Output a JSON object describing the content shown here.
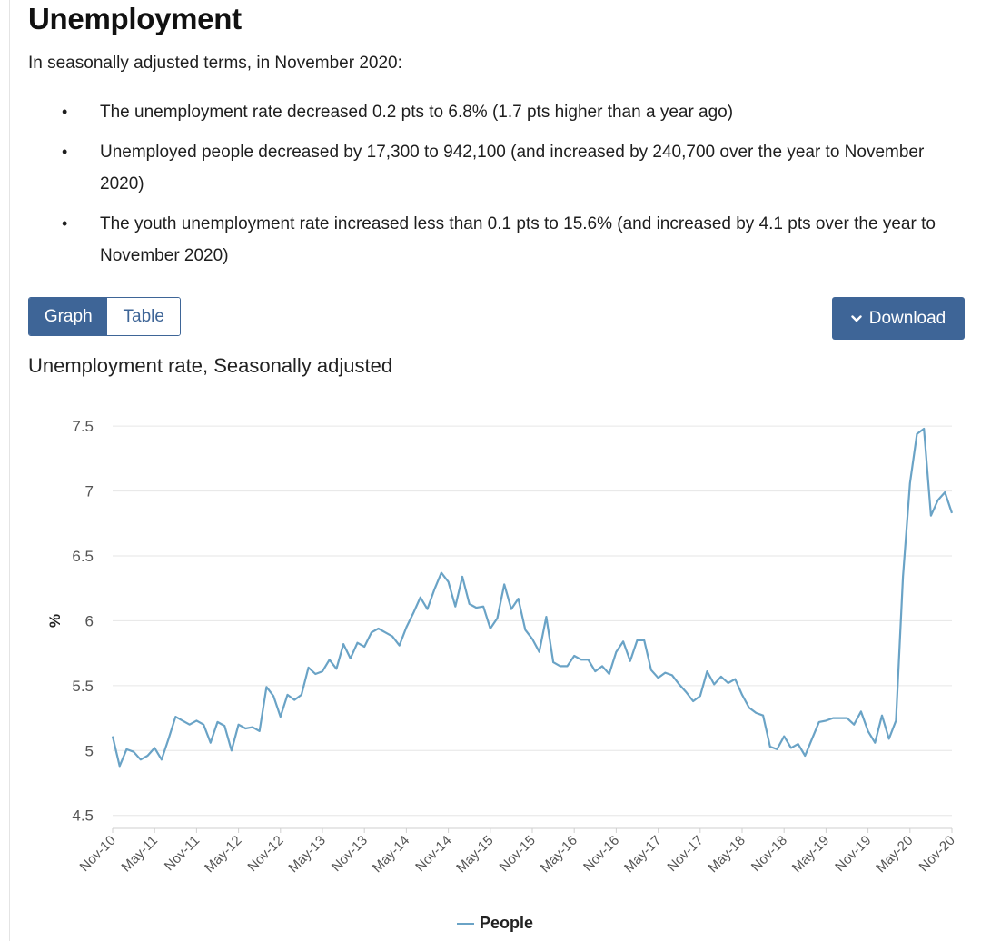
{
  "heading": "Unemployment",
  "intro": "In seasonally adjusted terms, in November 2020:",
  "bullets": [
    "The unemployment rate decreased 0.2 pts to 6.8% (1.7 pts higher than a year ago)",
    "Unemployed people decreased by 17,300 to 942,100 (and increased by 240,700 over the year to November 2020)",
    "The youth unemployment rate increased less than 0.1 pts to 15.6% (and increased by 4.1 pts over the year to November 2020)"
  ],
  "view_toggle": {
    "graph_label": "Graph",
    "table_label": "Table",
    "selected": "Graph"
  },
  "download": {
    "label": "Download",
    "icon": "chevron-down-icon"
  },
  "chart_title": "Unemployment rate, Seasonally adjusted",
  "colors": {
    "accent": "#3e6597",
    "series": "#6aa3c6",
    "grid": "#e6e6e6"
  },
  "chart_data": {
    "type": "line",
    "title": "Unemployment rate, Seasonally adjusted",
    "xlabel": "",
    "ylabel": "%",
    "ylim": [
      4.4,
      7.55
    ],
    "yticks": [
      4.5,
      5,
      5.5,
      6,
      6.5,
      7,
      7.5
    ],
    "x_tick_labels": [
      "Nov-10",
      "May-11",
      "Nov-11",
      "May-12",
      "Nov-12",
      "May-13",
      "Nov-13",
      "May-14",
      "Nov-14",
      "May-15",
      "Nov-15",
      "May-16",
      "Nov-16",
      "May-17",
      "Nov-17",
      "May-18",
      "Nov-18",
      "May-19",
      "Nov-19",
      "May-20",
      "Nov-20"
    ],
    "grid": true,
    "legend_position": "bottom-center",
    "categories_note": "monthly observations Nov-10 to Nov-20",
    "series": [
      {
        "name": "People",
        "values": [
          5.11,
          4.88,
          5.01,
          4.99,
          4.93,
          4.96,
          5.02,
          4.93,
          5.09,
          5.26,
          5.23,
          5.2,
          5.23,
          5.2,
          5.06,
          5.22,
          5.19,
          5.0,
          5.2,
          5.17,
          5.18,
          5.15,
          5.49,
          5.42,
          5.26,
          5.43,
          5.39,
          5.43,
          5.64,
          5.59,
          5.61,
          5.7,
          5.63,
          5.82,
          5.71,
          5.83,
          5.8,
          5.91,
          5.94,
          5.91,
          5.88,
          5.81,
          5.95,
          6.06,
          6.18,
          6.09,
          6.24,
          6.37,
          6.3,
          6.11,
          6.34,
          6.13,
          6.1,
          6.11,
          5.94,
          6.02,
          6.28,
          6.09,
          6.17,
          5.93,
          5.86,
          5.76,
          6.03,
          5.68,
          5.65,
          5.65,
          5.73,
          5.7,
          5.7,
          5.61,
          5.65,
          5.59,
          5.76,
          5.84,
          5.69,
          5.85,
          5.85,
          5.62,
          5.56,
          5.6,
          5.58,
          5.51,
          5.45,
          5.38,
          5.42,
          5.61,
          5.51,
          5.57,
          5.52,
          5.55,
          5.43,
          5.33,
          5.29,
          5.27,
          5.03,
          5.01,
          5.11,
          5.02,
          5.05,
          4.96,
          5.09,
          5.22,
          5.23,
          5.25,
          5.25,
          5.25,
          5.2,
          5.3,
          5.15,
          5.06,
          5.27,
          5.09,
          5.23,
          6.34,
          7.06,
          7.44,
          7.48,
          6.81,
          6.93,
          6.99,
          6.83
        ]
      }
    ]
  }
}
